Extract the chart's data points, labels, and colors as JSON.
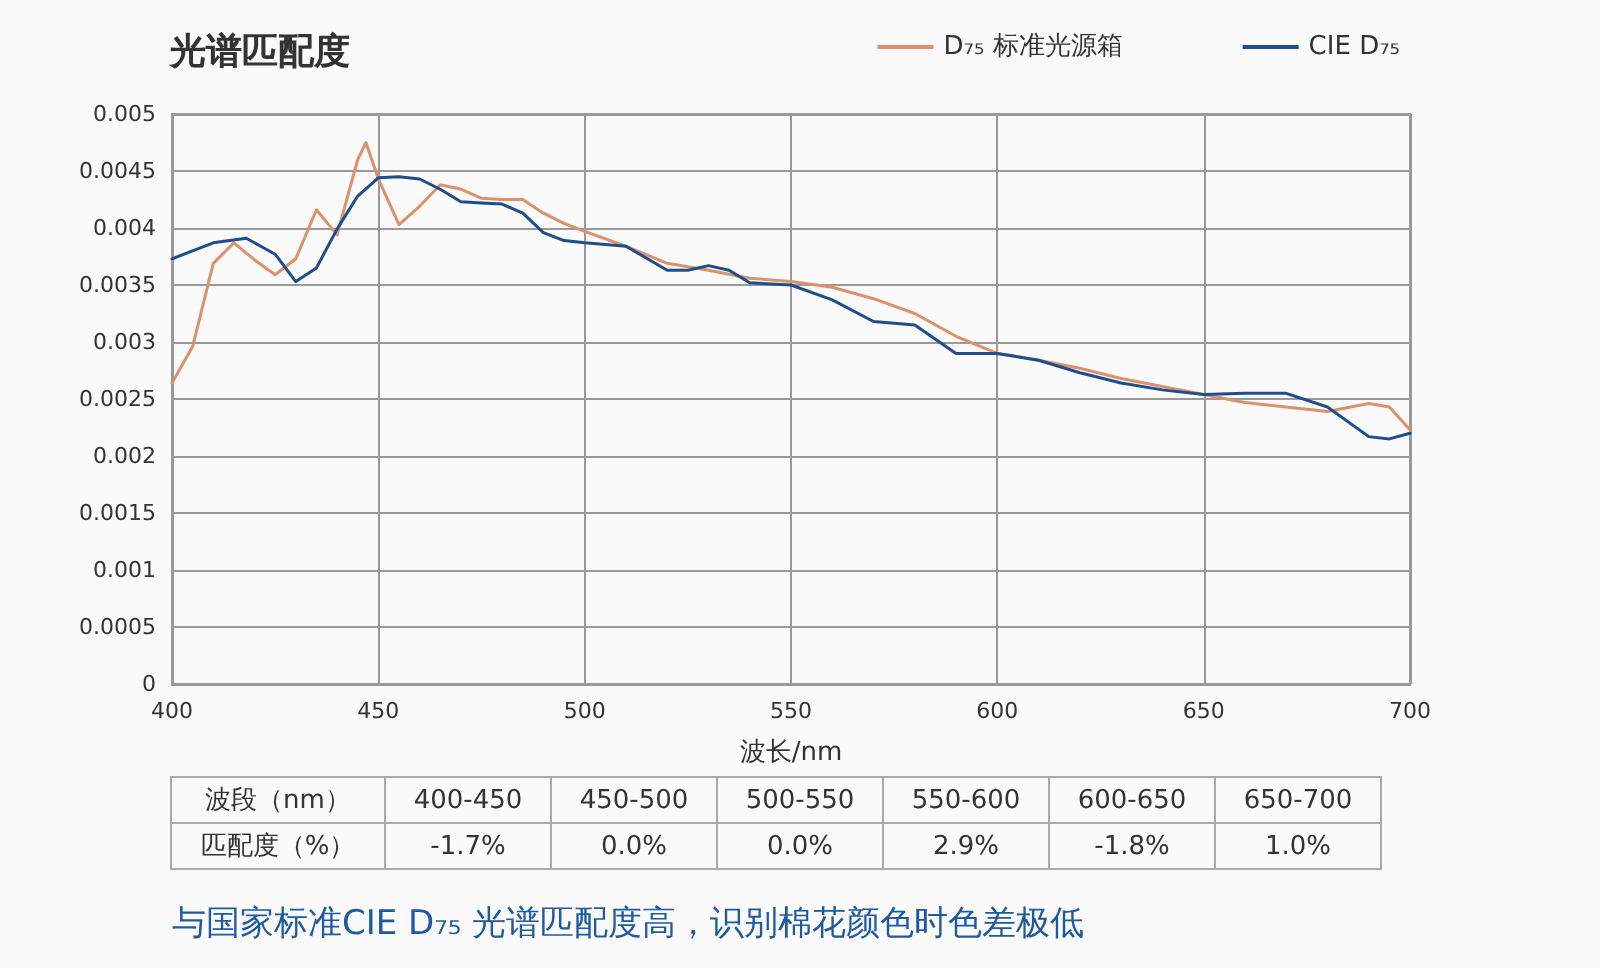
{
  "chart_data": {
    "type": "line",
    "title": "光谱匹配度",
    "xlabel": "波长/nm",
    "xlim": [
      400,
      700
    ],
    "xticks": [
      400,
      450,
      500,
      550,
      600,
      650,
      700
    ],
    "ylim": [
      0,
      0.005
    ],
    "yticks": [
      0,
      0.0005,
      0.001,
      0.0015,
      0.002,
      0.0025,
      0.003,
      0.0035,
      0.004,
      0.0045,
      0.005
    ],
    "grid": true,
    "legend": "top right",
    "marker": "none",
    "line_style": "solid",
    "series": [
      {
        "name": "D₇₅ 标准光源箱",
        "color": "#d9926c",
        "x": [
          400,
          405,
          410,
          415,
          420,
          425,
          430,
          435,
          440,
          445,
          447,
          450,
          455,
          460,
          465,
          470,
          475,
          480,
          485,
          490,
          495,
          500,
          510,
          520,
          530,
          540,
          550,
          560,
          570,
          580,
          590,
          600,
          610,
          620,
          630,
          640,
          650,
          660,
          670,
          680,
          690,
          695,
          700
        ],
        "values": [
          0.00264,
          0.00296,
          0.00369,
          0.00387,
          0.00372,
          0.00359,
          0.00373,
          0.00416,
          0.00394,
          0.0046,
          0.00475,
          0.00443,
          0.00403,
          0.00419,
          0.00438,
          0.00434,
          0.00426,
          0.00425,
          0.00425,
          0.00413,
          0.00404,
          0.00397,
          0.00384,
          0.00369,
          0.00363,
          0.00356,
          0.00353,
          0.00348,
          0.00338,
          0.00325,
          0.00305,
          0.0029,
          0.00284,
          0.00277,
          0.00268,
          0.00261,
          0.00254,
          0.00247,
          0.00243,
          0.00239,
          0.00246,
          0.00243,
          0.00223
        ]
      },
      {
        "name": "CIE D₇₅",
        "color": "#1f4e8c",
        "x": [
          400,
          410,
          418,
          425,
          430,
          435,
          440,
          445,
          450,
          455,
          460,
          465,
          470,
          475,
          480,
          485,
          490,
          495,
          500,
          510,
          520,
          525,
          530,
          535,
          540,
          550,
          560,
          570,
          580,
          590,
          600,
          610,
          620,
          630,
          640,
          650,
          660,
          670,
          680,
          690,
          695,
          700
        ],
        "values": [
          0.00373,
          0.00387,
          0.00391,
          0.00377,
          0.00353,
          0.00365,
          0.00399,
          0.00428,
          0.00444,
          0.00445,
          0.00443,
          0.00434,
          0.00423,
          0.00422,
          0.00421,
          0.00413,
          0.00396,
          0.00389,
          0.00387,
          0.00384,
          0.00363,
          0.00363,
          0.00367,
          0.00363,
          0.00352,
          0.0035,
          0.00337,
          0.00318,
          0.00315,
          0.0029,
          0.0029,
          0.00284,
          0.00273,
          0.00264,
          0.00258,
          0.00254,
          0.00255,
          0.00255,
          0.00243,
          0.00217,
          0.00215,
          0.0022
        ]
      }
    ],
    "annotations": [
      "波段（nm）",
      "400-450",
      "450-500",
      "500-550",
      "550-600",
      "600-650",
      "650-700",
      "匹配度（%）",
      "-1.7%",
      "0.0%",
      "0.0%",
      "2.9%",
      "-1.8%",
      "1.0%",
      "与国家标准CIE D₇₅ 光谱匹配度高，识别棉花颜色时色差极低"
    ]
  }
}
